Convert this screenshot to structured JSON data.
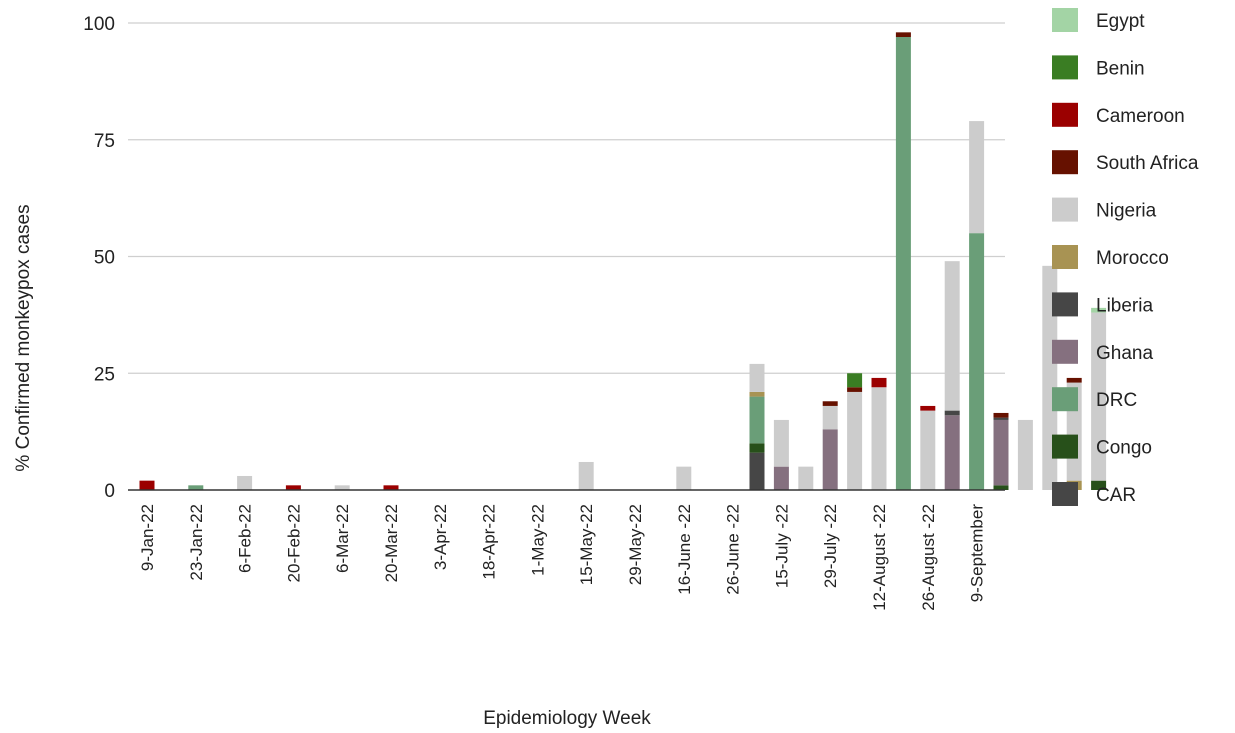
{
  "chart_data": {
    "type": "bar",
    "stacked": true,
    "xlabel": "Epidemiology Week",
    "ylabel": "% Confirmed monkeypox cases",
    "ylim": [
      0,
      100
    ],
    "yticks": [
      0,
      25,
      50,
      75,
      100
    ],
    "grid": true,
    "legend_position": "right",
    "tick_labels": [
      "9-Jan-22",
      "23-Jan-22",
      "6-Feb-22",
      "20-Feb-22",
      "6-Mar-22",
      "20-Mar-22",
      "3-Apr-22",
      "18-Apr-22",
      "1-May-22",
      "15-May-22",
      "29-May-22",
      "16-June -22",
      "26-June -22",
      "15-July -22",
      "29-July -22",
      "12-August -22",
      "26-August -22",
      "9-September"
    ],
    "legend_order": [
      "Egypt",
      "Benin",
      "Cameroon",
      "South Africa",
      "Nigeria",
      "Morocco",
      "Liberia",
      "Ghana",
      "DRC",
      "Congo",
      "CAR"
    ],
    "stack_order": [
      "CAR",
      "Congo",
      "DRC",
      "Ghana",
      "Liberia",
      "Morocco",
      "Nigeria",
      "South Africa",
      "Cameroon",
      "Benin",
      "Egypt"
    ],
    "colors": {
      "Egypt": "#a3d4a5",
      "Benin": "#3a7d23",
      "Cameroon": "#9b0000",
      "South Africa": "#661100",
      "Nigeria": "#cccccc",
      "Morocco": "#a89353",
      "Liberia": "#464646",
      "Ghana": "#85707f",
      "DRC": "#6a9e78",
      "Congo": "#27501a",
      "CAR": "#464646"
    },
    "bars": [
      {
        "Cameroon": 2
      },
      {},
      {
        "DRC": 1
      },
      {},
      {
        "Nigeria": 3
      },
      {},
      {
        "Cameroon": 1
      },
      {},
      {
        "Nigeria": 1
      },
      {},
      {
        "Cameroon": 1
      },
      {},
      {},
      {},
      {},
      {},
      {},
      {},
      {
        "Nigeria": 6
      },
      {},
      {},
      {},
      {
        "Nigeria": 5
      },
      {},
      {},
      {
        "CAR": 8,
        "Congo": 2,
        "DRC": 10,
        "Morocco": 1,
        "Nigeria": 6
      },
      {
        "Ghana": 5,
        "Nigeria": 10
      },
      {
        "Nigeria": 5
      },
      {
        "Ghana": 13,
        "Nigeria": 5,
        "South Africa": 1
      },
      {
        "Nigeria": 21,
        "South Africa": 1,
        "Benin": 3
      },
      {
        "Nigeria": 22,
        "Cameroon": 2
      },
      {
        "DRC": 97,
        "South Africa": 1
      },
      {
        "Nigeria": 17,
        "Cameroon": 1
      },
      {
        "Ghana": 16,
        "Liberia": 1,
        "Nigeria": 32
      },
      {
        "DRC": 55,
        "Nigeria": 24
      },
      {
        "Congo": 1,
        "Ghana": 14,
        "Liberia": 0.5,
        "South Africa": 1
      },
      {
        "Nigeria": 15
      },
      {
        "Nigeria": 48
      },
      {
        "Morocco": 2,
        "Nigeria": 21,
        "South Africa": 1
      },
      {
        "Congo": 2,
        "Nigeria": 36,
        "Egypt": 1
      }
    ]
  }
}
